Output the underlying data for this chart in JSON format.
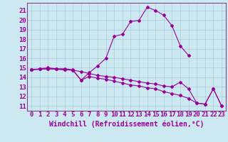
{
  "title": "",
  "xlabel": "Windchill (Refroidissement éolien,°C)",
  "background_color": "#cce8f0",
  "grid_color": "#aaccd8",
  "line_color": "#990099",
  "spine_color": "#884488",
  "xlim": [
    -0.5,
    23.5
  ],
  "ylim": [
    10.5,
    21.8
  ],
  "yticks": [
    11,
    12,
    13,
    14,
    15,
    16,
    17,
    18,
    19,
    20,
    21
  ],
  "xticks": [
    0,
    1,
    2,
    3,
    4,
    5,
    6,
    7,
    8,
    9,
    10,
    11,
    12,
    13,
    14,
    15,
    16,
    17,
    18,
    19,
    20,
    21,
    22,
    23
  ],
  "series1_x": [
    0,
    1,
    2,
    3,
    4,
    5,
    6,
    7,
    8,
    9,
    10,
    11,
    12,
    13,
    14,
    15,
    16,
    17,
    18,
    19,
    20,
    21,
    22,
    23
  ],
  "series1_y": [
    14.8,
    14.9,
    15.0,
    14.9,
    14.9,
    14.8,
    13.7,
    14.5,
    15.2,
    16.0,
    18.3,
    18.5,
    19.85,
    19.95,
    21.35,
    21.0,
    20.5,
    19.4,
    17.3,
    16.3,
    null,
    null,
    null,
    null
  ],
  "series2_x": [
    0,
    1,
    2,
    3,
    4,
    5,
    6,
    7,
    8,
    9,
    10,
    11,
    12,
    13,
    14,
    15,
    16,
    17,
    18,
    19,
    20,
    21,
    22,
    23
  ],
  "series2_y": [
    14.8,
    14.85,
    14.9,
    14.85,
    14.8,
    14.75,
    14.6,
    14.4,
    14.2,
    14.1,
    14.0,
    13.85,
    13.7,
    13.55,
    13.4,
    13.3,
    13.1,
    13.0,
    13.5,
    12.8,
    11.3,
    11.2,
    12.8,
    11.0
  ],
  "series3_x": [
    0,
    1,
    2,
    3,
    4,
    5,
    6,
    7,
    8,
    9,
    10,
    11,
    12,
    13,
    14,
    15,
    16,
    17,
    18,
    19,
    20,
    21,
    22,
    23
  ],
  "series3_y": [
    14.8,
    14.85,
    14.9,
    14.85,
    14.8,
    14.75,
    13.7,
    14.1,
    13.9,
    13.8,
    13.6,
    13.4,
    13.2,
    13.1,
    12.9,
    12.8,
    12.5,
    12.3,
    12.1,
    11.8,
    11.3,
    11.2,
    12.8,
    11.0
  ],
  "font_size_ticks": 6.5,
  "font_size_label": 7.0,
  "marker_size": 2.0,
  "line_width": 0.8
}
